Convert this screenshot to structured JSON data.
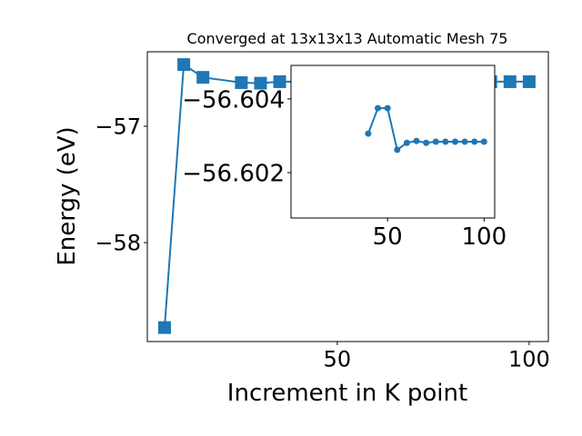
{
  "chart_data": [
    {
      "type": "line",
      "title": "Converged at 13x13x13 Automatic Mesh 75",
      "x_label": "Increment in K point",
      "y_label": "Energy (eV)",
      "x": [
        5,
        10,
        15,
        25,
        30,
        35,
        90,
        95,
        100
      ],
      "series": [
        {
          "color": "#1f77b4",
          "marker": "square",
          "values": [
            -58.73,
            -56.47,
            -56.58,
            -56.625,
            -56.63,
            -56.617,
            -56.617,
            -56.617,
            -56.617
          ]
        }
      ],
      "xlim": [
        0.5,
        105
      ],
      "ylim": [
        -58.85,
        -56.36
      ],
      "xticks": [
        50,
        100
      ],
      "yticks": [
        {
          "value": -58,
          "label": "−58"
        },
        {
          "value": -57,
          "label": "−57"
        }
      ]
    },
    {
      "type": "line",
      "x": [
        40,
        45,
        50,
        55,
        60,
        65,
        70,
        75,
        80,
        85,
        90,
        95,
        100
      ],
      "series": [
        {
          "color": "#1f77b4",
          "marker": "circle",
          "values": [
            -56.60306,
            -56.60375,
            -56.60375,
            -56.60262,
            -56.60281,
            -56.60286,
            -56.60281,
            -56.60284,
            -56.60284,
            -56.60284,
            -56.60284,
            -56.60284,
            -56.60284
          ]
        }
      ],
      "xlim": [
        0,
        105.5
      ],
      "ylim": [
        -56.60077,
        -56.60491
      ],
      "xticks": [
        50,
        100
      ],
      "yticks": [
        {
          "value": -56.602,
          "label": "−56.602"
        },
        {
          "value": -56.604,
          "label": "−56.604"
        }
      ]
    }
  ]
}
